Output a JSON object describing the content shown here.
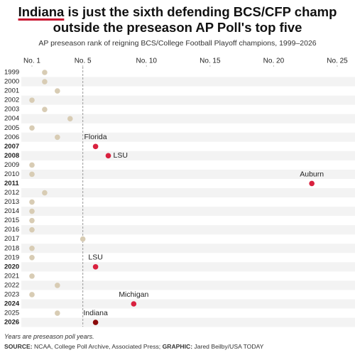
{
  "chart_data": {
    "type": "dot",
    "title_highlight": "Indiana",
    "title_line1_rest": " is just the sixth defending BCS/CFP champ",
    "title_line2": "outside the preseason AP Poll's top five",
    "subtitle": "AP preseason rank of reigning BCS/College Football Playoff champions, 1999–2026",
    "note": "Years are preseason poll years.",
    "source_label": "SOURCE:",
    "source": " NCAA, College Poll Archive, Associated Press; ",
    "graphic_label": "GRAPHIC:",
    "graphic": " Jared Beilby/USA TODAY",
    "categories": [
      "1999",
      "2000",
      "2001",
      "2002",
      "2003",
      "2004",
      "2005",
      "2006",
      "2007",
      "2008",
      "2009",
      "2010",
      "2011",
      "2012",
      "2013",
      "2014",
      "2015",
      "2016",
      "2017",
      "2018",
      "2019",
      "2020",
      "2021",
      "2022",
      "2023",
      "2024",
      "2025",
      "2026"
    ],
    "values": [
      2,
      2,
      3,
      1,
      2,
      4,
      1,
      3,
      6,
      7,
      1,
      1,
      23,
      2,
      1,
      1,
      1,
      1,
      5,
      1,
      1,
      6,
      1,
      3,
      1,
      9,
      3,
      6
    ],
    "point_labels": [
      null,
      null,
      null,
      null,
      null,
      null,
      null,
      null,
      "Florida",
      "LSU",
      null,
      null,
      "Auburn",
      null,
      null,
      null,
      null,
      null,
      null,
      null,
      null,
      "LSU",
      null,
      null,
      null,
      "Michigan",
      null,
      "Indiana"
    ],
    "point_colors": [
      "#d8ccb4",
      "#d8ccb4",
      "#d8ccb4",
      "#d8ccb4",
      "#d8ccb4",
      "#d8ccb4",
      "#d8ccb4",
      "#d8ccb4",
      "#d9213f",
      "#d9213f",
      "#d8ccb4",
      "#d8ccb4",
      "#d9213f",
      "#d8ccb4",
      "#d8ccb4",
      "#d8ccb4",
      "#d8ccb4",
      "#d8ccb4",
      "#d8ccb4",
      "#d8ccb4",
      "#d8ccb4",
      "#d9213f",
      "#d8ccb4",
      "#d8ccb4",
      "#d8ccb4",
      "#d9213f",
      "#d8ccb4",
      "#8b0a0a"
    ],
    "xlim": [
      1,
      25
    ],
    "xticks": [
      {
        "value": 1,
        "label": "No. 1"
      },
      {
        "value": 5,
        "label": "No. 5"
      },
      {
        "value": 10,
        "label": "No. 10"
      },
      {
        "value": 15,
        "label": "No. 15"
      },
      {
        "value": 20,
        "label": "No. 20"
      },
      {
        "value": 25,
        "label": "No. 25"
      }
    ],
    "reference_line": 5,
    "striped_rows": true
  }
}
